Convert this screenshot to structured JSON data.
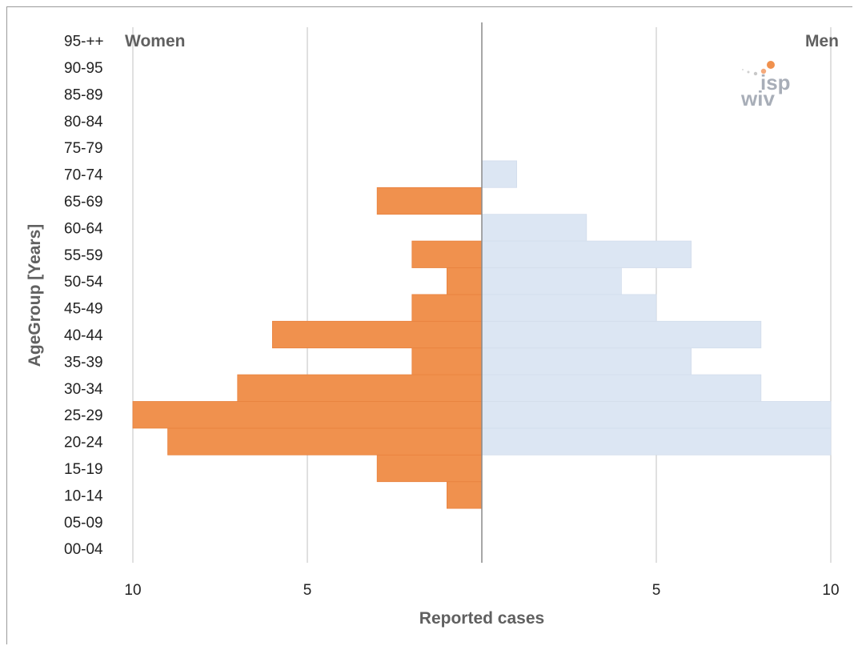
{
  "chart_data": {
    "type": "bar",
    "orientation": "horizontal-population-pyramid",
    "categories": [
      "00-04",
      "05-09",
      "10-14",
      "15-19",
      "20-24",
      "25-29",
      "30-34",
      "35-39",
      "40-44",
      "45-49",
      "50-54",
      "55-59",
      "60-64",
      "65-69",
      "70-74",
      "75-79",
      "80-84",
      "85-89",
      "90-95",
      "95-++"
    ],
    "series": [
      {
        "name": "Women",
        "side": "left",
        "color": "#f0914e",
        "values": [
          0,
          0,
          1,
          3,
          9,
          10,
          7,
          2,
          6,
          2,
          1,
          2,
          0,
          3,
          0,
          0,
          0,
          0,
          0,
          0
        ]
      },
      {
        "name": "Men",
        "side": "right",
        "color": "#dce6f3",
        "values": [
          0,
          0,
          0,
          0,
          10,
          10,
          8,
          6,
          8,
          5,
          4,
          6,
          3,
          0,
          1,
          0,
          0,
          0,
          0,
          0
        ]
      }
    ],
    "xlabel": "Reported cases",
    "ylabel": "AgeGroup [Years]",
    "xlim": [
      -10,
      10
    ],
    "ticks": [
      {
        "value": -10,
        "label": "10"
      },
      {
        "value": -5,
        "label": "5"
      },
      {
        "value": 5,
        "label": "5"
      },
      {
        "value": 10,
        "label": "10"
      }
    ],
    "grid": true,
    "side_labels": {
      "left": "Women",
      "right": "Men"
    }
  },
  "logo": {
    "top": "isp",
    "bottom": "wiv"
  },
  "colors": {
    "women": "#f0914e",
    "men": "#dce6f3",
    "grid": "#cccccc",
    "axis": "#8a8a8a",
    "text": "#222222",
    "label": "#606060"
  }
}
